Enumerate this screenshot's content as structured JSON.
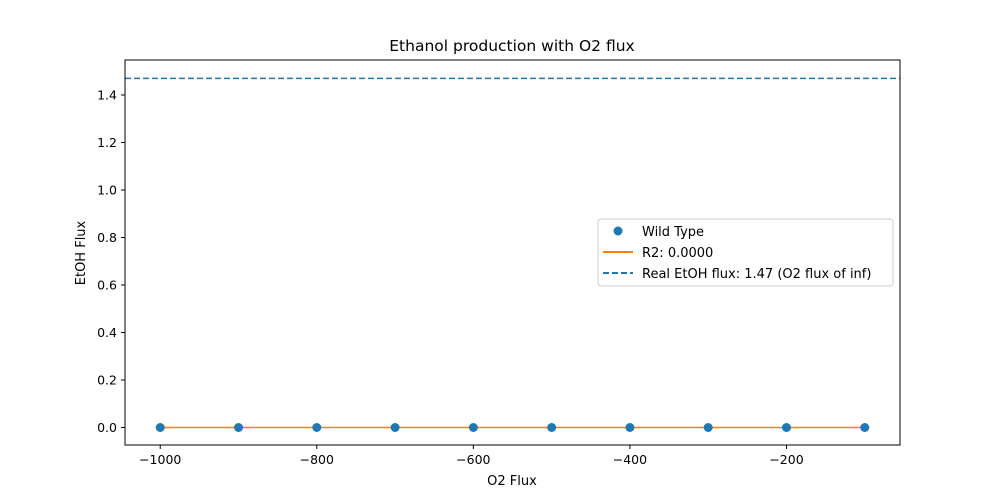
{
  "chart_data": {
    "type": "scatter",
    "title": "Ethanol production with O2 flux",
    "xlabel": "O2 Flux",
    "ylabel": "EtOH Flux",
    "xlim": [
      -1045,
      -55
    ],
    "ylim": [
      -0.0737,
      1.5474
    ],
    "xticks": [
      -1000,
      -800,
      -600,
      -400,
      -200
    ],
    "xtick_labels": [
      "−1000",
      "−800",
      "−600",
      "−400",
      "−200"
    ],
    "yticks": [
      0.0,
      0.2,
      0.4,
      0.6,
      0.8,
      1.0,
      1.2,
      1.4
    ],
    "ytick_labels": [
      "0.0",
      "0.2",
      "0.4",
      "0.6",
      "0.8",
      "1.0",
      "1.2",
      "1.4"
    ],
    "grid": false,
    "legend_position": "center-right",
    "series": [
      {
        "name": "Wild Type",
        "kind": "scatter",
        "color": "#1f77b4",
        "x": [
          -1000,
          -900,
          -800,
          -700,
          -600,
          -500,
          -400,
          -300,
          -200,
          -100
        ],
        "y": [
          0,
          0,
          0,
          0,
          0,
          0,
          0,
          0,
          0,
          0
        ]
      },
      {
        "name": "R2: 0.0000",
        "kind": "line",
        "color": "#ff7f0e",
        "x": [
          -1000,
          -100
        ],
        "y": [
          0,
          0
        ]
      },
      {
        "name": "Real EtOH flux: 1.47 (O2 flux of inf)",
        "kind": "hline",
        "style": "dashed",
        "color": "#1f77b4",
        "y": 1.47
      }
    ]
  }
}
